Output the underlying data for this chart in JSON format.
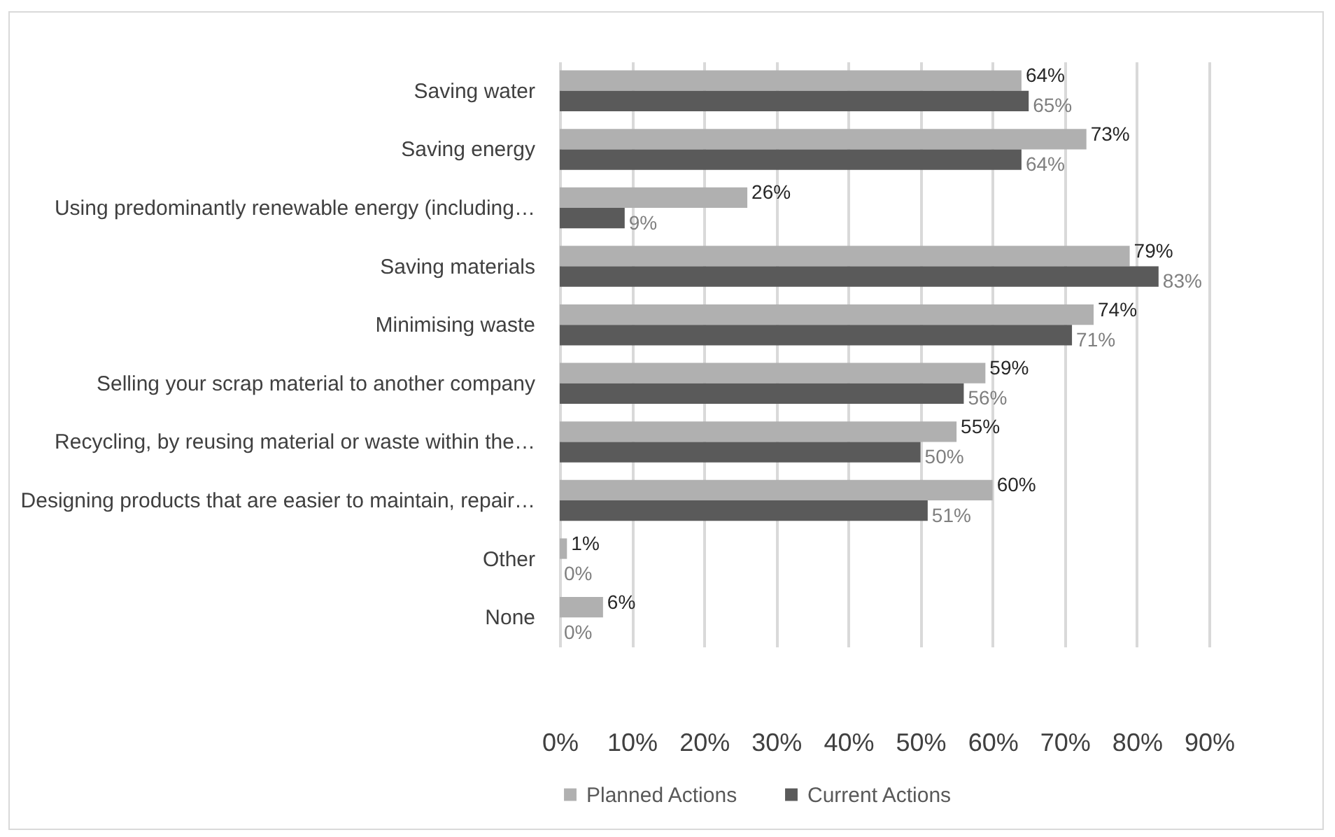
{
  "chart_data": {
    "type": "bar",
    "orientation": "horizontal",
    "categories": [
      "Saving water",
      "Saving energy",
      "Using predominantly renewable energy (including…",
      "Saving materials",
      "Minimising waste",
      "Selling your scrap material to another company",
      "Recycling, by reusing material or waste within the…",
      "Designing products that are easier to maintain, repair…",
      "Other",
      "None"
    ],
    "series": [
      {
        "name": "Planned Actions",
        "color": "#b0b0b0",
        "values": [
          64,
          73,
          26,
          79,
          74,
          59,
          55,
          60,
          1,
          6
        ],
        "value_labels": [
          "64%",
          "73%",
          "26%",
          "79%",
          "74%",
          "59%",
          "55%",
          "60%",
          "1%",
          "6%"
        ]
      },
      {
        "name": "Current Actions",
        "color": "#5a5a5a",
        "values": [
          65,
          64,
          9,
          83,
          71,
          56,
          50,
          51,
          0,
          0
        ],
        "value_labels": [
          "65%",
          "64%",
          "9%",
          "83%",
          "71%",
          "56%",
          "50%",
          "51%",
          "0%",
          "0%"
        ]
      }
    ],
    "xlim": [
      0,
      90
    ],
    "xticks": [
      {
        "value": 0,
        "label": "0%"
      },
      {
        "value": 10,
        "label": "10%"
      },
      {
        "value": 20,
        "label": "20%"
      },
      {
        "value": 30,
        "label": "30%"
      },
      {
        "value": 40,
        "label": "40%"
      },
      {
        "value": 50,
        "label": "50%"
      },
      {
        "value": 60,
        "label": "60%"
      },
      {
        "value": 70,
        "label": "70%"
      },
      {
        "value": 80,
        "label": "80%"
      },
      {
        "value": 90,
        "label": "90%"
      }
    ],
    "grid": true,
    "legend": "bottom"
  }
}
